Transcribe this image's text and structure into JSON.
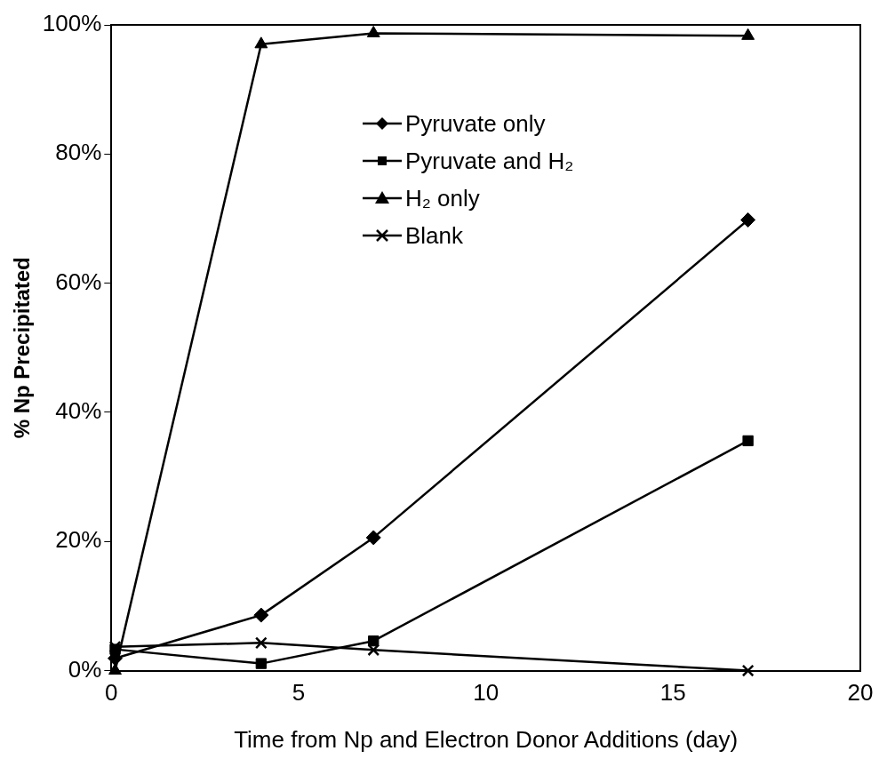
{
  "chart_data": {
    "type": "line",
    "xlabel": "Time from Np and Electron Donor Additions (day)",
    "ylabel": "% Np Precipitated",
    "xlim": [
      0,
      20
    ],
    "xticks": [
      0,
      5,
      10,
      15,
      20
    ],
    "ylim": [
      0,
      100
    ],
    "yticks": [
      {
        "value": 0,
        "label": "0%"
      },
      {
        "value": 20,
        "label": "20%"
      },
      {
        "value": 40,
        "label": "40%"
      },
      {
        "value": 60,
        "label": "60%"
      },
      {
        "value": 80,
        "label": "80%"
      },
      {
        "value": 100,
        "label": "100%"
      }
    ],
    "grid": false,
    "legend": "top",
    "line_style": "solid",
    "series": [
      {
        "name": "Pyruvate only",
        "color": "#000000",
        "marker": "diamond",
        "x": [
          0.1,
          4,
          7,
          17
        ],
        "values": [
          1.9,
          8.6,
          20.6,
          69.8
        ]
      },
      {
        "name": "Pyruvate and H₂",
        "color": "#000000",
        "marker": "square",
        "x": [
          0.1,
          4,
          7,
          17
        ],
        "values": [
          3.3,
          1.1,
          4.6,
          35.6
        ]
      },
      {
        "name": "H₂ only",
        "color": "#000000",
        "marker": "triangle",
        "x": [
          0.1,
          4,
          7,
          17
        ],
        "values": [
          0,
          97,
          98.7,
          98.3
        ]
      },
      {
        "name": "Blank",
        "color": "#000000",
        "marker": "cross",
        "x": [
          0.1,
          4,
          7,
          17
        ],
        "values": [
          3.7,
          4.3,
          3.2,
          0
        ]
      }
    ]
  }
}
